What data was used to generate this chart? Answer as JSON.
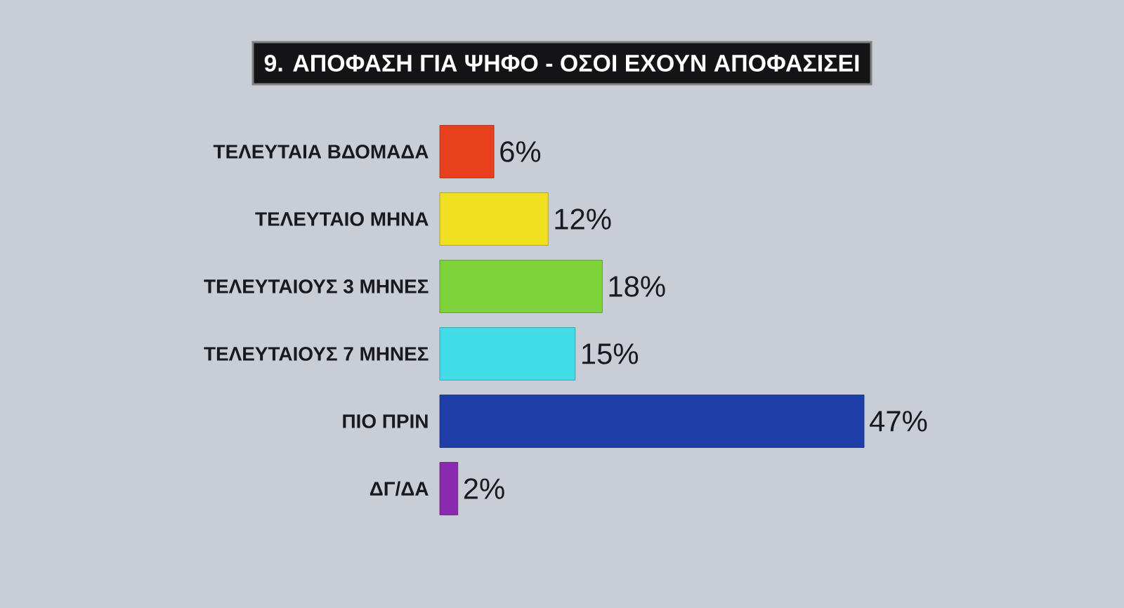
{
  "chart_data": {
    "type": "bar",
    "orientation": "horizontal",
    "title": "9. ΑΠΟΦΑΣΗ ΓΙΑ ΨΗΦΟ - ΟΣΟΙ ΕΧΟΥΝ ΑΠΟΦΑΣΙΣΕΙ",
    "categories": [
      "ΤΕΛΕΥΤΑΙΑ ΒΔΟΜΑΔΑ",
      "ΤΕΛΕΥΤΑΙΟ ΜΗΝΑ",
      "ΤΕΛΕΥΤΑΙΟΥΣ 3 ΜΗΝΕΣ",
      "ΤΕΛΕΥΤΑΙΟΥΣ 7 ΜΗΝΕΣ",
      "ΠΙΟ ΠΡΙΝ",
      "ΔΓ/ΔΑ"
    ],
    "values": [
      6,
      12,
      18,
      15,
      47,
      2
    ],
    "value_labels": [
      "6%",
      "12%",
      "18%",
      "15%",
      "47%",
      "2%"
    ],
    "colors": [
      "#e8401c",
      "#f0e020",
      "#7ed23a",
      "#40dce8",
      "#1e3fa8",
      "#8a2ab0"
    ]
  }
}
